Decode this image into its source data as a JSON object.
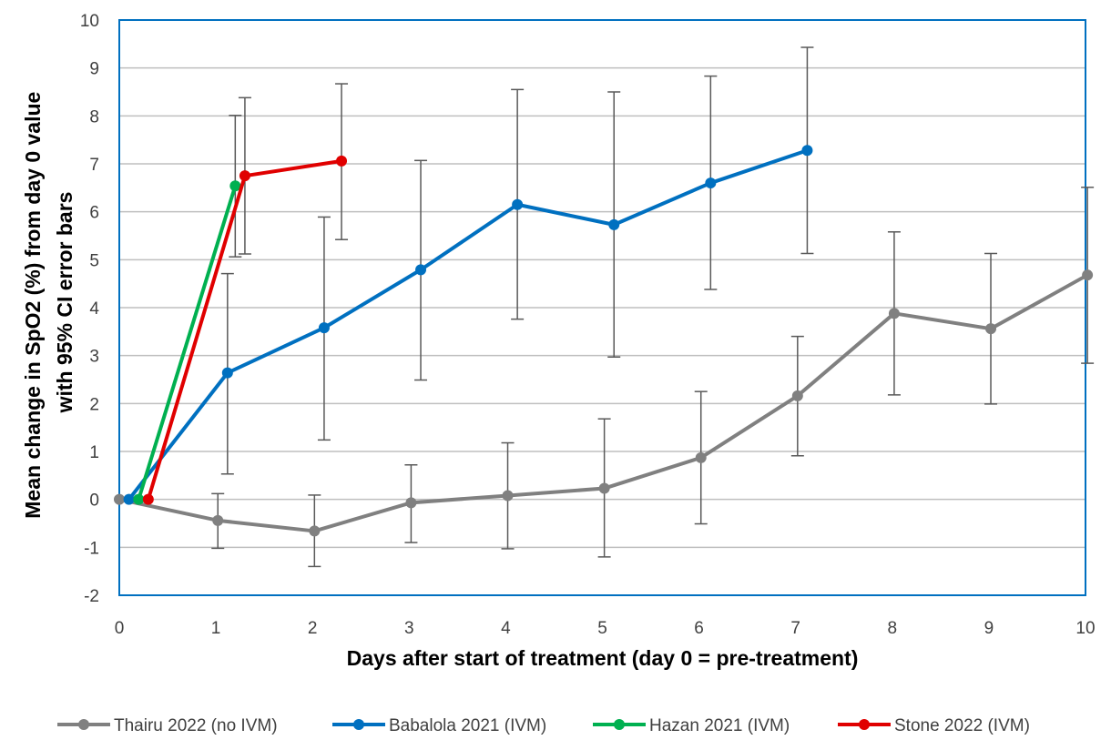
{
  "chart_data": {
    "type": "line",
    "xlabel": "Days after start of treatment (day 0 = pre-treatment)",
    "ylabel_lines": [
      "Mean change in SpO2 (%) from day 0 value",
      "with 95% CI error bars"
    ],
    "xlim": [
      0,
      10
    ],
    "ylim": [
      -2,
      10
    ],
    "x_ticks": [
      "0",
      "1",
      "2",
      "3",
      "4",
      "5",
      "6",
      "7",
      "8",
      "9",
      "10"
    ],
    "y_ticks": [
      "-2",
      "-1",
      "0",
      "1",
      "2",
      "3",
      "4",
      "5",
      "6",
      "7",
      "8",
      "9",
      "10"
    ],
    "grid": "horizontal",
    "legend_position": "bottom",
    "series": [
      {
        "name": "Thairu 2022 (no IVM)",
        "color": "#808080",
        "points": [
          {
            "x": 0,
            "y": 0
          },
          {
            "x": 1.02,
            "y": -0.44,
            "ci": [
              -1.02,
              0.12
            ]
          },
          {
            "x": 2.02,
            "y": -0.66,
            "ci": [
              -1.4,
              0.09
            ]
          },
          {
            "x": 3.02,
            "y": -0.07,
            "ci": [
              -0.9,
              0.72
            ]
          },
          {
            "x": 4.02,
            "y": 0.08,
            "ci": [
              -1.03,
              1.18
            ]
          },
          {
            "x": 5.02,
            "y": 0.23,
            "ci": [
              -1.2,
              1.68
            ]
          },
          {
            "x": 6.02,
            "y": 0.87,
            "ci": [
              -0.51,
              2.25
            ]
          },
          {
            "x": 7.02,
            "y": 2.16,
            "ci": [
              0.91,
              3.4
            ]
          },
          {
            "x": 8.02,
            "y": 3.88,
            "ci": [
              2.18,
              5.58
            ]
          },
          {
            "x": 9.02,
            "y": 3.56,
            "ci": [
              1.99,
              5.13
            ]
          },
          {
            "x": 10.02,
            "y": 4.68,
            "ci": [
              2.84,
              6.51
            ]
          }
        ]
      },
      {
        "name": "Babalola 2021 (IVM)",
        "color": "#0070C0",
        "points": [
          {
            "x": 0.1,
            "y": 0
          },
          {
            "x": 1.12,
            "y": 2.64,
            "ci": [
              0.53,
              4.71
            ]
          },
          {
            "x": 2.12,
            "y": 3.58,
            "ci": [
              1.24,
              5.89
            ]
          },
          {
            "x": 3.12,
            "y": 4.79,
            "ci": [
              2.49,
              7.07
            ]
          },
          {
            "x": 4.12,
            "y": 6.15,
            "ci": [
              3.76,
              8.55
            ]
          },
          {
            "x": 5.12,
            "y": 5.73,
            "ci": [
              2.97,
              8.5
            ]
          },
          {
            "x": 6.12,
            "y": 6.6,
            "ci": [
              4.38,
              8.83
            ]
          },
          {
            "x": 7.12,
            "y": 7.28,
            "ci": [
              5.13,
              9.43
            ]
          }
        ]
      },
      {
        "name": "Hazan 2021 (IVM)",
        "color": "#00B050",
        "points": [
          {
            "x": 0.2,
            "y": 0
          },
          {
            "x": 1.2,
            "y": 6.54,
            "ci": [
              5.06,
              8.01
            ]
          }
        ]
      },
      {
        "name": "Stone 2022 (IVM)",
        "color": "#E00000",
        "points": [
          {
            "x": 0.3,
            "y": 0
          },
          {
            "x": 1.3,
            "y": 6.75,
            "ci": [
              5.12,
              8.38
            ]
          },
          {
            "x": 2.3,
            "y": 7.06,
            "ci": [
              5.42,
              8.67
            ]
          }
        ]
      }
    ]
  }
}
